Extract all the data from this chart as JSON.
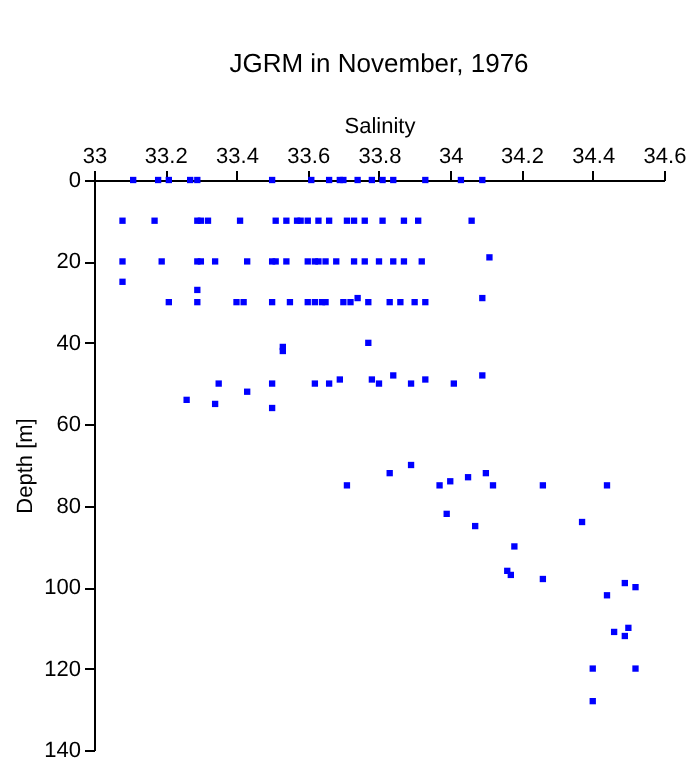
{
  "chart_data": {
    "type": "scatter",
    "title": "JGRM in November, 1976",
    "xlabel": "Salinity",
    "ylabel": "Depth [m]",
    "x": [
      33.11,
      33.18,
      33.21,
      33.27,
      33.29,
      33.5,
      33.61,
      33.66,
      33.69,
      33.7,
      33.74,
      33.78,
      33.81,
      33.84,
      33.93,
      34.03,
      34.09,
      33.08,
      33.17,
      33.29,
      33.3,
      33.32,
      33.41,
      33.51,
      33.54,
      33.57,
      33.58,
      33.6,
      33.63,
      33.66,
      33.71,
      33.73,
      33.76,
      33.81,
      33.87,
      33.91,
      34.06,
      33.08,
      33.19,
      33.29,
      33.3,
      33.34,
      33.43,
      33.5,
      33.51,
      33.54,
      33.6,
      33.62,
      33.63,
      33.65,
      33.68,
      33.73,
      33.76,
      33.8,
      33.84,
      33.87,
      33.92,
      34.11,
      33.08,
      33.29,
      33.21,
      33.29,
      33.4,
      33.42,
      33.5,
      33.55,
      33.6,
      33.62,
      33.64,
      33.65,
      33.7,
      33.72,
      33.74,
      33.77,
      33.83,
      33.86,
      33.9,
      33.93,
      34.09,
      33.53,
      33.53,
      33.77,
      33.26,
      33.34,
      33.35,
      33.43,
      33.5,
      33.5,
      33.62,
      33.66,
      33.69,
      33.78,
      33.8,
      33.84,
      33.89,
      33.93,
      34.01,
      34.09,
      33.71,
      33.83,
      33.89,
      33.97,
      34.0,
      33.99,
      34.05,
      34.07,
      34.1,
      34.12,
      34.18,
      34.16,
      34.17,
      34.26,
      34.26,
      34.37,
      34.44,
      34.44,
      34.49,
      34.52,
      34.46,
      34.5,
      34.49,
      34.4,
      34.52,
      34.4
    ],
    "values": [
      0,
      0,
      0,
      0,
      0,
      0,
      0,
      0,
      0,
      0,
      0,
      0,
      0,
      0,
      0,
      0,
      0,
      10,
      10,
      10,
      10,
      10,
      10,
      10,
      10,
      10,
      10,
      10,
      10,
      10,
      10,
      10,
      10,
      10,
      10,
      10,
      10,
      20,
      20,
      20,
      20,
      20,
      20,
      20,
      20,
      20,
      20,
      20,
      20,
      20,
      20,
      20,
      20,
      20,
      20,
      20,
      20,
      19,
      25,
      27,
      30,
      30,
      30,
      30,
      30,
      30,
      30,
      30,
      30,
      30,
      30,
      30,
      29,
      30,
      30,
      30,
      30,
      30,
      29,
      41,
      42,
      40,
      54,
      55,
      50,
      52,
      50,
      56,
      50,
      50,
      49,
      49,
      50,
      48,
      50,
      49,
      50,
      48,
      75,
      72,
      70,
      75,
      74,
      82,
      73,
      85,
      72,
      75,
      90,
      96,
      97,
      75,
      98,
      84,
      75,
      102,
      99,
      100,
      111,
      110,
      112,
      120,
      120,
      128
    ],
    "color": "#0000ff",
    "marker": "square",
    "xlim": [
      33,
      34.6
    ],
    "xticks": [
      33,
      33.2,
      33.4,
      33.6,
      33.8,
      34,
      34.2,
      34.4,
      34.6
    ],
    "ylim": [
      140,
      0
    ],
    "yticks": [
      0,
      20,
      40,
      60,
      80,
      100,
      120,
      140
    ],
    "grid": false
  }
}
